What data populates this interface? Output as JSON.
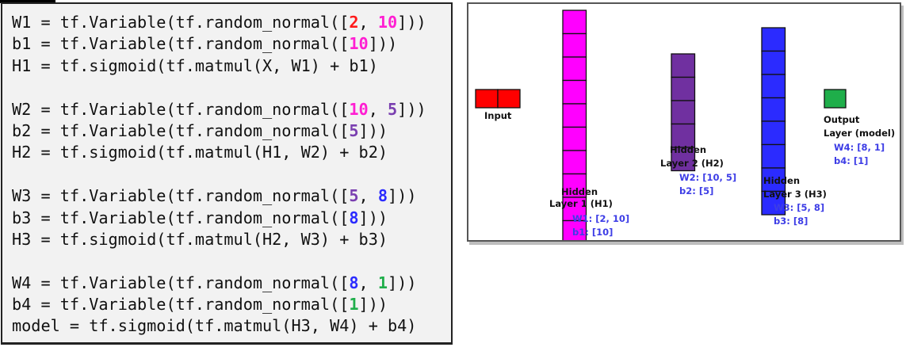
{
  "code": {
    "blocks": [
      [
        [
          {
            "t": "W1 = tf.Variable(tf.random_normal([",
            "c": ""
          },
          {
            "t": "2",
            "c": "#ff1a1a"
          },
          {
            "t": ", ",
            "c": ""
          },
          {
            "t": "10",
            "c": "#ff1fd2"
          },
          {
            "t": "]))",
            "c": ""
          }
        ],
        [
          {
            "t": "b1 = tf.Variable(tf.random_normal([",
            "c": ""
          },
          {
            "t": "10",
            "c": "#ff1fd2"
          },
          {
            "t": "]))",
            "c": ""
          }
        ],
        [
          {
            "t": "H1 = tf.sigmoid(tf.matmul(X, W1) + b1)",
            "c": ""
          }
        ]
      ],
      [
        [
          {
            "t": "W2 = tf.Variable(tf.random_normal([",
            "c": ""
          },
          {
            "t": "10",
            "c": "#ff1fd2"
          },
          {
            "t": ", ",
            "c": ""
          },
          {
            "t": "5",
            "c": "#7a3fb0"
          },
          {
            "t": "]))",
            "c": ""
          }
        ],
        [
          {
            "t": "b2 = tf.Variable(tf.random_normal([",
            "c": ""
          },
          {
            "t": "5",
            "c": "#7a3fb0"
          },
          {
            "t": "]))",
            "c": ""
          }
        ],
        [
          {
            "t": "H2 = tf.sigmoid(tf.matmul(H1, W2) + b2)",
            "c": ""
          }
        ]
      ],
      [
        [
          {
            "t": "W3 = tf.Variable(tf.random_normal([",
            "c": ""
          },
          {
            "t": "5",
            "c": "#7a3fb0"
          },
          {
            "t": ", ",
            "c": ""
          },
          {
            "t": "8",
            "c": "#2b2bff"
          },
          {
            "t": "]))",
            "c": ""
          }
        ],
        [
          {
            "t": "b3 = tf.Variable(tf.random_normal([",
            "c": ""
          },
          {
            "t": "8",
            "c": "#2b2bff"
          },
          {
            "t": "]))",
            "c": ""
          }
        ],
        [
          {
            "t": "H3 = tf.sigmoid(tf.matmul(H2, W3) + b3)",
            "c": ""
          }
        ]
      ],
      [
        [
          {
            "t": "W4 = tf.Variable(tf.random_normal([",
            "c": ""
          },
          {
            "t": "8",
            "c": "#2b2bff"
          },
          {
            "t": ", ",
            "c": ""
          },
          {
            "t": "1",
            "c": "#1fae4a"
          },
          {
            "t": "]))",
            "c": ""
          }
        ],
        [
          {
            "t": "b4 = tf.Variable(tf.random_normal([",
            "c": ""
          },
          {
            "t": "1",
            "c": "#1fae4a"
          },
          {
            "t": "]))",
            "c": ""
          }
        ],
        [
          {
            "t": "model = tf.sigmoid(tf.matmul(H3, W4) + b4)",
            "c": ""
          }
        ]
      ]
    ]
  },
  "diagram": {
    "layers": [
      {
        "id": "input",
        "units": 2,
        "orientation": "horizontal",
        "color": "#ff0000",
        "title_lines": [
          "Input"
        ],
        "dim_lines": []
      },
      {
        "id": "h1",
        "units": 10,
        "orientation": "vertical",
        "color": "#ff00ff",
        "title_lines": [
          "Hidden",
          "Layer 1 (H1)"
        ],
        "dim_lines": [
          "W1: [2, 10]",
          "b1: [10]"
        ]
      },
      {
        "id": "h2",
        "units": 5,
        "orientation": "vertical",
        "color": "#7030a0",
        "title_lines": [
          "Hidden",
          "Layer 2 (H2)"
        ],
        "dim_lines": [
          "W2: [10, 5]",
          "b2: [5]"
        ]
      },
      {
        "id": "h3",
        "units": 8,
        "orientation": "vertical",
        "color": "#2b2bff",
        "title_lines": [
          "Hidden",
          "Layer 3 (H3)"
        ],
        "dim_lines": [
          "W3: [5, 8]",
          "b3: [8]"
        ]
      },
      {
        "id": "output",
        "units": 1,
        "orientation": "vertical",
        "color": "#1fae4a",
        "title_lines": [
          "Output",
          "Layer (model)"
        ],
        "dim_lines": [
          "W4: [8, 1]",
          "b4: [1]"
        ]
      }
    ]
  }
}
